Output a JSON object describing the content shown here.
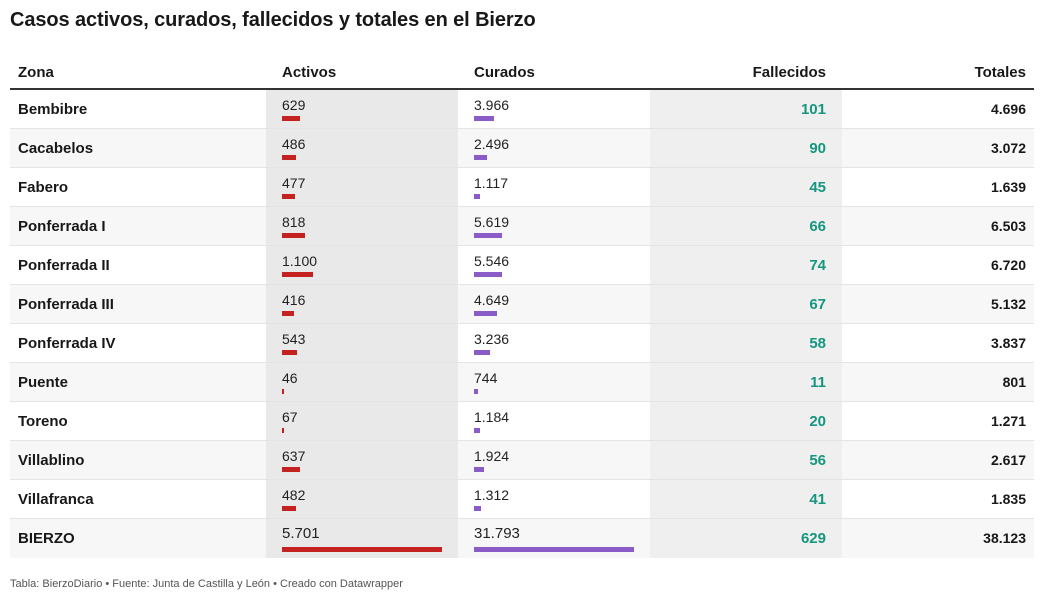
{
  "title": "Casos activos, curados, fallecidos y totales en el Bierzo",
  "footer": "Tabla: BierzoDiario • Fuente: Junta de Castilla y León • Creado con Datawrapper",
  "colors": {
    "activos_bar": "#c42121",
    "curados_bar": "#8a5cc8",
    "fallecidos_text": "#15967e",
    "shade": "#e9e9e9"
  },
  "chart_data": {
    "type": "table",
    "columns": [
      "Zona",
      "Activos",
      "Curados",
      "Fallecidos",
      "Totales"
    ],
    "bar_max": {
      "activos": 5701,
      "curados": 31793
    },
    "rows": [
      {
        "zona": "Bembibre",
        "activos": 629,
        "activos_label": "629",
        "curados": 3966,
        "curados_label": "3.966",
        "fallecidos": "101",
        "totales": "4.696"
      },
      {
        "zona": "Cacabelos",
        "activos": 486,
        "activos_label": "486",
        "curados": 2496,
        "curados_label": "2.496",
        "fallecidos": "90",
        "totales": "3.072"
      },
      {
        "zona": "Fabero",
        "activos": 477,
        "activos_label": "477",
        "curados": 1117,
        "curados_label": "1.117",
        "fallecidos": "45",
        "totales": "1.639"
      },
      {
        "zona": "Ponferrada I",
        "activos": 818,
        "activos_label": "818",
        "curados": 5619,
        "curados_label": "5.619",
        "fallecidos": "66",
        "totales": "6.503"
      },
      {
        "zona": "Ponferrada II",
        "activos": 1100,
        "activos_label": "1.100",
        "curados": 5546,
        "curados_label": "5.546",
        "fallecidos": "74",
        "totales": "6.720"
      },
      {
        "zona": "Ponferrada III",
        "activos": 416,
        "activos_label": "416",
        "curados": 4649,
        "curados_label": "4.649",
        "fallecidos": "67",
        "totales": "5.132"
      },
      {
        "zona": "Ponferrada IV",
        "activos": 543,
        "activos_label": "543",
        "curados": 3236,
        "curados_label": "3.236",
        "fallecidos": "58",
        "totales": "3.837"
      },
      {
        "zona": "Puente",
        "activos": 46,
        "activos_label": "46",
        "curados": 744,
        "curados_label": "744",
        "fallecidos": "11",
        "totales": "801"
      },
      {
        "zona": "Toreno",
        "activos": 67,
        "activos_label": "67",
        "curados": 1184,
        "curados_label": "1.184",
        "fallecidos": "20",
        "totales": "1.271"
      },
      {
        "zona": "Villablino",
        "activos": 637,
        "activos_label": "637",
        "curados": 1924,
        "curados_label": "1.924",
        "fallecidos": "56",
        "totales": "2.617"
      },
      {
        "zona": "Villafranca",
        "activos": 482,
        "activos_label": "482",
        "curados": 1312,
        "curados_label": "1.312",
        "fallecidos": "41",
        "totales": "1.835"
      },
      {
        "zona": "BIERZO",
        "activos": 5701,
        "activos_label": "5.701",
        "curados": 31793,
        "curados_label": "31.793",
        "fallecidos": "629",
        "totales": "38.123"
      }
    ]
  }
}
